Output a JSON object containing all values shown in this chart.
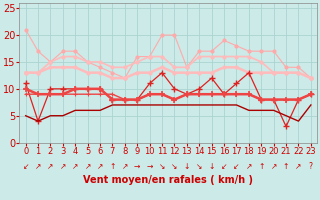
{
  "x": [
    0,
    1,
    2,
    3,
    4,
    5,
    6,
    7,
    8,
    9,
    10,
    11,
    12,
    13,
    14,
    15,
    16,
    17,
    18,
    19,
    20,
    21,
    22,
    23
  ],
  "line_max": [
    21,
    17,
    15,
    17,
    17,
    15,
    14,
    13,
    12,
    16,
    16,
    20,
    20,
    14,
    17,
    17,
    19,
    18,
    17,
    17,
    17,
    14,
    14,
    12
  ],
  "line_avg_high": [
    13,
    13,
    15,
    16,
    16,
    15,
    15,
    14,
    14,
    15,
    16,
    16,
    14,
    14,
    16,
    16,
    16,
    16,
    16,
    15,
    13,
    13,
    13,
    12
  ],
  "line_avg_mid": [
    13,
    13,
    14,
    14,
    14,
    13,
    13,
    12,
    12,
    13,
    13,
    14,
    13,
    13,
    13,
    13,
    14,
    14,
    13,
    13,
    13,
    13,
    13,
    12
  ],
  "line_strong": [
    11,
    4,
    10,
    10,
    10,
    10,
    10,
    8,
    8,
    8,
    11,
    13,
    10,
    9,
    10,
    12,
    9,
    11,
    13,
    8,
    8,
    3,
    8,
    9
  ],
  "line_med": [
    10,
    9,
    9,
    9,
    10,
    10,
    10,
    8,
    8,
    8,
    9,
    9,
    8,
    9,
    9,
    9,
    9,
    9,
    9,
    8,
    8,
    8,
    8,
    9
  ],
  "line_avg": [
    9,
    9,
    9,
    9,
    9,
    9,
    9,
    9,
    8,
    8,
    9,
    9,
    8,
    9,
    9,
    9,
    9,
    9,
    9,
    8,
    8,
    8,
    8,
    9
  ],
  "line_min": [
    5,
    4,
    5,
    5,
    6,
    6,
    6,
    7,
    7,
    7,
    7,
    7,
    7,
    7,
    7,
    7,
    7,
    7,
    6,
    6,
    6,
    5,
    4,
    7
  ],
  "background": "#cceae7",
  "grid_color": "#aad4d0",
  "color_light1": "#ffaaaa",
  "color_light2": "#ffbbbb",
  "color_dark1": "#dd2222",
  "color_dark2": "#ee4444",
  "color_dark3": "#ee4444",
  "color_darkest": "#aa0000",
  "xlabel": "Vent moyen/en rafales ( km/h )",
  "ylim": [
    0,
    26
  ],
  "yticks": [
    0,
    5,
    10,
    15,
    20,
    25
  ],
  "arrows": [
    "↙",
    "↗",
    "↗",
    "↗",
    "↗",
    "↗",
    "↗",
    "↑",
    "↗",
    "→",
    "→",
    "↘",
    "↘",
    "↓",
    "↘",
    "↓",
    "↙",
    "↙",
    "↗",
    "↑",
    "↗",
    "↑",
    "↗",
    "?"
  ]
}
